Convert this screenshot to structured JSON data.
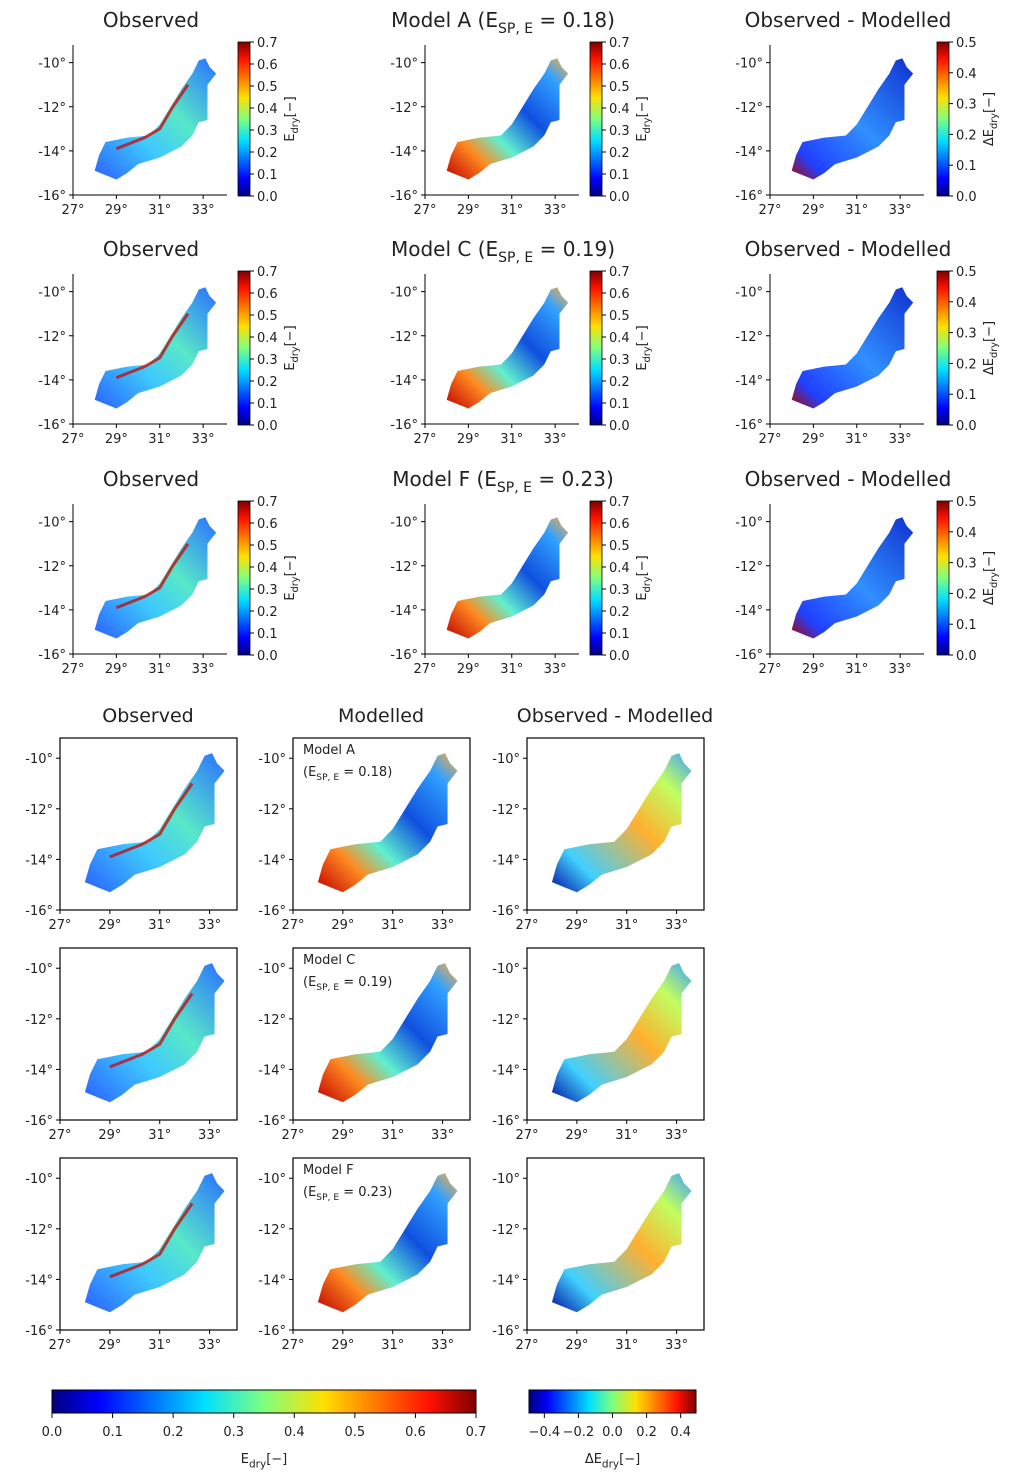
{
  "chart_data": {
    "type": "map-grid",
    "axes": {
      "xlim": [
        27,
        34.1
      ],
      "ylim": [
        -16,
        -9.2
      ],
      "xticks": [
        {
          "value": 27,
          "label": "27°"
        },
        {
          "value": 29,
          "label": "29°"
        },
        {
          "value": 31,
          "label": "31°"
        },
        {
          "value": 33,
          "label": "33°"
        }
      ],
      "yticks": [
        {
          "value": -10,
          "label": "-10°"
        },
        {
          "value": -12,
          "label": "-12°"
        },
        {
          "value": -14,
          "label": "-14°"
        },
        {
          "value": -16,
          "label": "-16°"
        }
      ]
    },
    "colorbars": {
      "e_dry": {
        "lim": [
          0,
          0.7
        ],
        "label_parts": [
          "E",
          "dry",
          "[−]"
        ],
        "ticks": [
          {
            "value": 0,
            "label": "0.0"
          },
          0.1,
          0.2,
          0.3,
          0.4,
          0.5,
          0.6,
          0.7
        ]
      },
      "delta_top": {
        "lim": [
          0,
          0.5
        ],
        "label_parts": [
          "ΔE",
          "dry",
          "[−]"
        ],
        "ticks": [
          {
            "value": 0,
            "label": "0.0"
          },
          0.1,
          0.2,
          0.3,
          0.4,
          0.5
        ]
      },
      "delta_bottom": {
        "lim": [
          -0.49,
          0.49
        ],
        "label_parts": [
          "ΔE",
          "dry",
          "[−]"
        ],
        "ticks": [
          {
            "value": -0.4,
            "label": "−0.4"
          },
          {
            "value": -0.2,
            "label": "−0.2"
          },
          {
            "value": 0,
            "label": "0.0"
          },
          0.2,
          0.4
        ]
      }
    },
    "top": {
      "rows": [
        [
          {
            "title_parts": [
              "Observed"
            ]
          },
          {
            "title_parts": [
              "Model A (E",
              "SP, E",
              " = 0.18)"
            ]
          },
          {
            "title_parts": [
              "Observed - Modelled"
            ]
          }
        ],
        [
          {
            "title_parts": [
              "Observed"
            ]
          },
          {
            "title_parts": [
              "Model C (E",
              "SP, E",
              " = 0.19)"
            ]
          },
          {
            "title_parts": [
              "Observed - Modelled"
            ]
          }
        ],
        [
          {
            "title_parts": [
              "Observed"
            ]
          },
          {
            "title_parts": [
              "Model F (E",
              "SP, E",
              " = 0.23)"
            ]
          },
          {
            "title_parts": [
              "Observed - Modelled"
            ]
          }
        ]
      ]
    },
    "bottom": {
      "column_titles": [
        "Observed",
        "Modelled",
        "Observed - Modelled"
      ],
      "models": [
        {
          "name": "Model A",
          "parts": [
            "(E",
            "SP, E",
            " = 0.18)"
          ]
        },
        {
          "name": "Model C",
          "parts": [
            "(E",
            "SP, E",
            " = 0.19)"
          ]
        },
        {
          "name": "Model F",
          "parts": [
            "(E",
            "SP, E",
            " = 0.23)"
          ]
        }
      ]
    }
  }
}
